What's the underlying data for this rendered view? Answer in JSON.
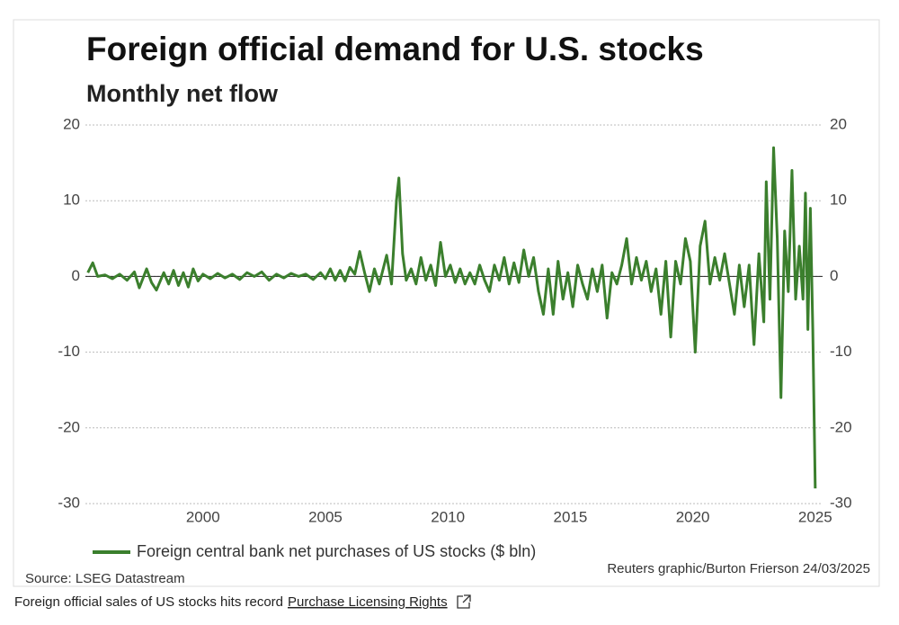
{
  "chart_data": {
    "type": "line",
    "title": "Foreign official demand for U.S. stocks",
    "subtitle": "Monthly net flow",
    "source": "Source: LSEG Datastream",
    "credit": "Reuters graphic/Burton Frierson 24/03/2025",
    "x": [
      1995.3,
      1995.5,
      1995.7,
      1996,
      1996.3,
      1996.6,
      1996.9,
      1997.2,
      1997.4,
      1997.7,
      1997.9,
      1998.1,
      1998.4,
      1998.6,
      1998.8,
      1999,
      1999.2,
      1999.4,
      1999.6,
      1999.8,
      2000,
      2000.3,
      2000.6,
      2000.9,
      2001.2,
      2001.5,
      2001.8,
      2002.1,
      2002.4,
      2002.7,
      2003,
      2003.3,
      2003.6,
      2003.9,
      2004.2,
      2004.5,
      2004.8,
      2005,
      2005.2,
      2005.4,
      2005.6,
      2005.8,
      2006,
      2006.2,
      2006.4,
      2006.6,
      2006.8,
      2007,
      2007.2,
      2007.5,
      2007.7,
      2007.9,
      2008,
      2008.15,
      2008.3,
      2008.5,
      2008.7,
      2008.9,
      2009.1,
      2009.3,
      2009.5,
      2009.7,
      2009.9,
      2010.1,
      2010.3,
      2010.5,
      2010.7,
      2010.9,
      2011.1,
      2011.3,
      2011.5,
      2011.7,
      2011.9,
      2012.1,
      2012.3,
      2012.5,
      2012.7,
      2012.9,
      2013.1,
      2013.3,
      2013.5,
      2013.7,
      2013.9,
      2014.1,
      2014.3,
      2014.5,
      2014.7,
      2014.9,
      2015.1,
      2015.3,
      2015.5,
      2015.7,
      2015.9,
      2016.1,
      2016.3,
      2016.5,
      2016.7,
      2016.9,
      2017.1,
      2017.3,
      2017.5,
      2017.7,
      2017.9,
      2018.1,
      2018.3,
      2018.5,
      2018.7,
      2018.9,
      2019.1,
      2019.3,
      2019.5,
      2019.7,
      2019.9,
      2020.1,
      2020.3,
      2020.5,
      2020.7,
      2020.9,
      2021.1,
      2021.3,
      2021.5,
      2021.7,
      2021.9,
      2022.1,
      2022.3,
      2022.5,
      2022.7,
      2022.9,
      2023,
      2023.15,
      2023.3,
      2023.45,
      2023.6,
      2023.75,
      2023.9,
      2024.05,
      2024.2,
      2024.35,
      2024.5,
      2024.6,
      2024.7,
      2024.8,
      2024.9,
      2025
    ],
    "series": [
      {
        "name": "Foreign central bank net purchases of US stocks ($ bln)",
        "color": "#3b7f2d",
        "values": [
          0.5,
          1.8,
          0,
          0.2,
          -0.3,
          0.3,
          -0.5,
          0.6,
          -1.5,
          1,
          -0.8,
          -1.8,
          0.5,
          -1,
          0.8,
          -1.2,
          0.5,
          -1.4,
          1,
          -0.6,
          0.3,
          -0.3,
          0.4,
          -0.2,
          0.3,
          -0.4,
          0.5,
          0,
          0.6,
          -0.5,
          0.3,
          -0.2,
          0.4,
          0,
          0.3,
          -0.4,
          0.5,
          -0.3,
          1,
          -0.5,
          0.8,
          -0.6,
          1.2,
          0.3,
          3.3,
          0.5,
          -2,
          1,
          -1,
          2.8,
          -1,
          10,
          13,
          3,
          -0.5,
          1,
          -1,
          2.5,
          -0.5,
          1.5,
          -1.2,
          4.5,
          0,
          1.5,
          -0.8,
          1,
          -1,
          0.5,
          -1,
          1.5,
          -0.5,
          -2,
          1.5,
          -0.5,
          2.5,
          -1,
          1.8,
          -0.8,
          3.5,
          0,
          2.5,
          -2,
          -5,
          1,
          -5,
          2,
          -3,
          0.5,
          -4,
          1.5,
          -1,
          -3,
          1,
          -2,
          1.5,
          -5.5,
          0.5,
          -1,
          1.5,
          5,
          -1,
          2.5,
          -0.5,
          2,
          -2,
          1,
          -5,
          2,
          -8,
          2,
          -1,
          5,
          2,
          -10,
          4,
          7.3,
          -1,
          2.5,
          -0.5,
          3,
          -1,
          -5,
          1.5,
          -4,
          1.5,
          -9,
          3,
          -6,
          12.5,
          -3,
          17,
          5,
          -16,
          6,
          -2,
          14,
          -3,
          4,
          -3,
          11,
          -7,
          9,
          -7,
          -28
        ]
      }
    ],
    "xlim": [
      1995.2,
      2025.3
    ],
    "xticks": [
      2000,
      2005,
      2010,
      2015,
      2020,
      2025
    ],
    "ylim": [
      -30,
      20
    ],
    "yticks": [
      -30,
      -20,
      -10,
      0,
      10,
      20
    ],
    "y2lim": [
      -30,
      20
    ],
    "y2ticks": [
      -30,
      -20,
      -10,
      0,
      10,
      20
    ],
    "grid": true,
    "legend": "bottom"
  },
  "caption": {
    "text": "Foreign official sales of US stocks hits record",
    "link": "Purchase Licensing Rights"
  }
}
